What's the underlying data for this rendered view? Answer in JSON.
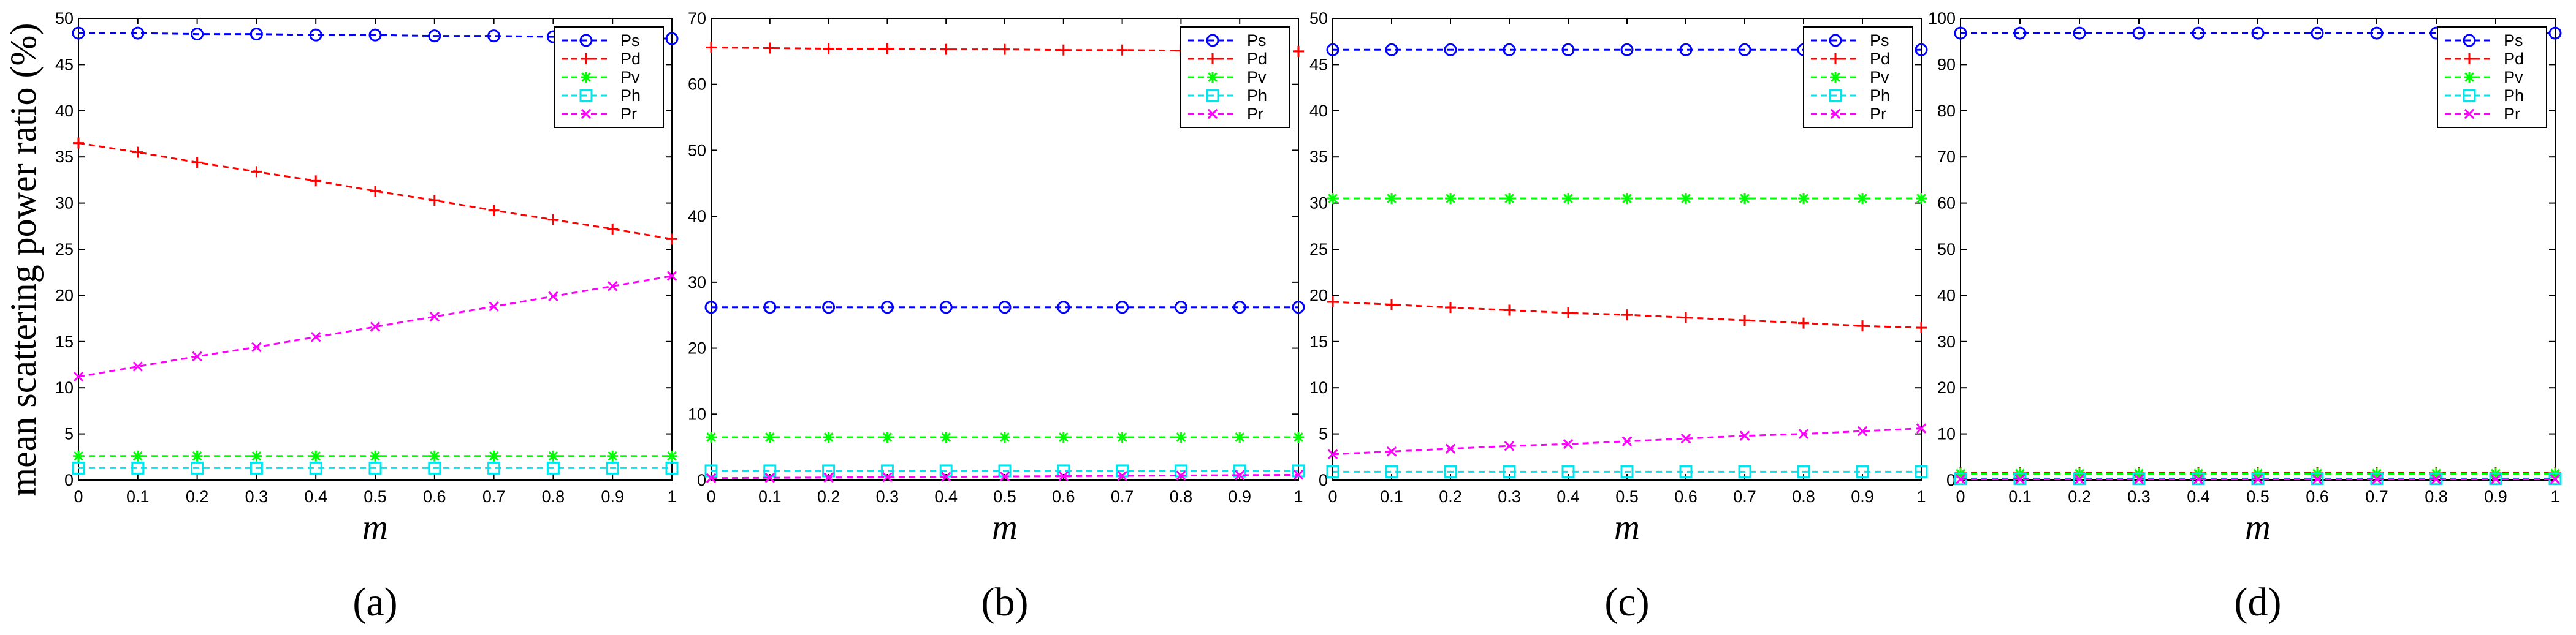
{
  "figure": {
    "ylabel": "mean scattering power ratio (%)"
  },
  "series_styles": [
    {
      "name": "Ps",
      "color": "#0000ff",
      "marker": "circle"
    },
    {
      "name": "Pd",
      "color": "#ff0000",
      "marker": "plus"
    },
    {
      "name": "Pv",
      "color": "#00ff00",
      "marker": "star"
    },
    {
      "name": "Ph",
      "color": "#00e5ee",
      "marker": "square"
    },
    {
      "name": "Pr",
      "color": "#ff00ff",
      "marker": "x"
    }
  ],
  "chart_data": [
    {
      "type": "line",
      "panel_label": "(a)",
      "xlabel": "m",
      "ylabel": "mean scattering power ratio (%)",
      "x": [
        0,
        0.1,
        0.2,
        0.3,
        0.4,
        0.5,
        0.6,
        0.7,
        0.8,
        0.9,
        1
      ],
      "xticks": [
        "0",
        "0.1",
        "0.2",
        "0.3",
        "0.4",
        "0.5",
        "0.6",
        "0.7",
        "0.8",
        "0.9",
        "1"
      ],
      "xlim": [
        0,
        1
      ],
      "ylim": [
        0,
        50
      ],
      "yticks": [
        0,
        5,
        10,
        15,
        20,
        25,
        30,
        35,
        40,
        45,
        50
      ],
      "legend_position": "top-right",
      "series": [
        {
          "name": "Ps",
          "values": [
            48.4,
            48.4,
            48.3,
            48.3,
            48.2,
            48.2,
            48.1,
            48.1,
            48.0,
            47.9,
            47.8
          ]
        },
        {
          "name": "Pd",
          "values": [
            36.5,
            35.5,
            34.4,
            33.4,
            32.4,
            31.3,
            30.3,
            29.2,
            28.2,
            27.2,
            26.1
          ]
        },
        {
          "name": "Pv",
          "values": [
            2.6,
            2.6,
            2.6,
            2.6,
            2.6,
            2.6,
            2.6,
            2.6,
            2.6,
            2.6,
            2.6
          ]
        },
        {
          "name": "Ph",
          "values": [
            1.3,
            1.3,
            1.3,
            1.3,
            1.3,
            1.3,
            1.3,
            1.3,
            1.3,
            1.3,
            1.3
          ]
        },
        {
          "name": "Pr",
          "values": [
            11.2,
            12.3,
            13.4,
            14.4,
            15.5,
            16.6,
            17.7,
            18.8,
            19.9,
            21.0,
            22.1
          ]
        }
      ]
    },
    {
      "type": "line",
      "panel_label": "(b)",
      "xlabel": "m",
      "ylabel": "",
      "x": [
        0,
        0.1,
        0.2,
        0.3,
        0.4,
        0.5,
        0.6,
        0.7,
        0.8,
        0.9,
        1
      ],
      "xticks": [
        "0",
        "0.1",
        "0.2",
        "0.3",
        "0.4",
        "0.5",
        "0.6",
        "0.7",
        "0.8",
        "0.9",
        "1"
      ],
      "xlim": [
        0,
        1
      ],
      "ylim": [
        0,
        70
      ],
      "yticks": [
        0,
        10,
        20,
        30,
        40,
        50,
        60,
        70
      ],
      "legend_position": "top-right",
      "series": [
        {
          "name": "Ps",
          "values": [
            26.2,
            26.2,
            26.2,
            26.2,
            26.2,
            26.2,
            26.2,
            26.2,
            26.2,
            26.2,
            26.2
          ]
        },
        {
          "name": "Pd",
          "values": [
            65.6,
            65.5,
            65.4,
            65.4,
            65.3,
            65.3,
            65.2,
            65.2,
            65.1,
            65.1,
            65.0
          ]
        },
        {
          "name": "Pv",
          "values": [
            6.5,
            6.5,
            6.5,
            6.5,
            6.5,
            6.5,
            6.5,
            6.5,
            6.5,
            6.5,
            6.5
          ]
        },
        {
          "name": "Ph",
          "values": [
            1.4,
            1.4,
            1.4,
            1.4,
            1.4,
            1.4,
            1.4,
            1.4,
            1.4,
            1.4,
            1.4
          ]
        },
        {
          "name": "Pr",
          "values": [
            0.3,
            0.35,
            0.4,
            0.45,
            0.5,
            0.55,
            0.6,
            0.65,
            0.7,
            0.75,
            0.8
          ]
        }
      ]
    },
    {
      "type": "line",
      "panel_label": "(c)",
      "xlabel": "m",
      "ylabel": "",
      "x": [
        0,
        0.1,
        0.2,
        0.3,
        0.4,
        0.5,
        0.6,
        0.7,
        0.8,
        0.9,
        1
      ],
      "xticks": [
        "0",
        "0.1",
        "0.2",
        "0.3",
        "0.4",
        "0.5",
        "0.6",
        "0.7",
        "0.8",
        "0.9",
        "1"
      ],
      "xlim": [
        0,
        1
      ],
      "ylim": [
        0,
        50
      ],
      "yticks": [
        0,
        5,
        10,
        15,
        20,
        25,
        30,
        35,
        40,
        45,
        50
      ],
      "legend_position": "top-right",
      "series": [
        {
          "name": "Ps",
          "values": [
            46.6,
            46.6,
            46.6,
            46.6,
            46.6,
            46.6,
            46.6,
            46.6,
            46.6,
            46.6,
            46.6
          ]
        },
        {
          "name": "Pd",
          "values": [
            19.3,
            19.0,
            18.7,
            18.4,
            18.1,
            17.9,
            17.6,
            17.3,
            17.0,
            16.7,
            16.5
          ]
        },
        {
          "name": "Pv",
          "values": [
            30.5,
            30.5,
            30.5,
            30.5,
            30.5,
            30.5,
            30.5,
            30.5,
            30.5,
            30.5,
            30.5
          ]
        },
        {
          "name": "Ph",
          "values": [
            0.9,
            0.9,
            0.9,
            0.9,
            0.9,
            0.9,
            0.9,
            0.9,
            0.9,
            0.9,
            0.9
          ]
        },
        {
          "name": "Pr",
          "values": [
            2.8,
            3.1,
            3.4,
            3.7,
            3.9,
            4.2,
            4.5,
            4.8,
            5.0,
            5.3,
            5.6
          ]
        }
      ]
    },
    {
      "type": "line",
      "panel_label": "(d)",
      "xlabel": "m",
      "ylabel": "",
      "x": [
        0,
        0.1,
        0.2,
        0.3,
        0.4,
        0.5,
        0.6,
        0.7,
        0.8,
        0.9,
        1
      ],
      "xticks": [
        "0",
        "0.1",
        "0.2",
        "0.3",
        "0.4",
        "0.5",
        "0.6",
        "0.7",
        "0.8",
        "0.9",
        "1"
      ],
      "xlim": [
        0,
        1
      ],
      "ylim": [
        0,
        100
      ],
      "yticks": [
        0,
        10,
        20,
        30,
        40,
        50,
        60,
        70,
        80,
        90,
        100
      ],
      "legend_position": "top-right",
      "series": [
        {
          "name": "Ps",
          "values": [
            96.8,
            96.8,
            96.8,
            96.8,
            96.8,
            96.8,
            96.8,
            96.8,
            96.8,
            96.8,
            96.8
          ]
        },
        {
          "name": "Pd",
          "values": [
            1.6,
            1.6,
            1.6,
            1.6,
            1.6,
            1.6,
            1.6,
            1.6,
            1.6,
            1.6,
            1.6
          ]
        },
        {
          "name": "Pv",
          "values": [
            1.4,
            1.4,
            1.4,
            1.4,
            1.4,
            1.4,
            1.4,
            1.4,
            1.4,
            1.4,
            1.4
          ]
        },
        {
          "name": "Ph",
          "values": [
            0.3,
            0.3,
            0.3,
            0.3,
            0.3,
            0.3,
            0.3,
            0.3,
            0.3,
            0.3,
            0.3
          ]
        },
        {
          "name": "Pr",
          "values": [
            0.2,
            0.2,
            0.2,
            0.2,
            0.2,
            0.2,
            0.2,
            0.2,
            0.2,
            0.2,
            0.2
          ]
        }
      ]
    }
  ]
}
